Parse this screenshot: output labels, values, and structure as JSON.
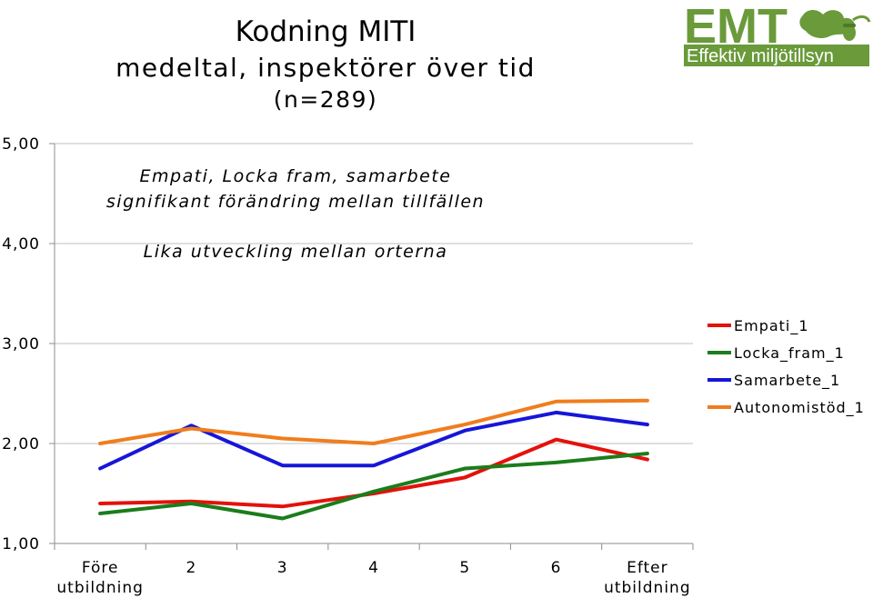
{
  "logo": {
    "name": "EMT",
    "tagline": "Effektiv miljötillsyn",
    "color": "#6a9a3a"
  },
  "chart_data": {
    "type": "line",
    "title": [
      "Kodning MITI",
      "medeltal, inspektörer över tid",
      "(n=289)"
    ],
    "annotations": [
      "Empati, Locka fram, samarbete",
      "signifikant förändring mellan tillfällen",
      "Lika utveckling mellan orterna"
    ],
    "categories": [
      [
        "Före",
        "utbildning"
      ],
      [
        "2"
      ],
      [
        "3"
      ],
      [
        "4"
      ],
      [
        "5"
      ],
      [
        "6"
      ],
      [
        "Efter",
        "utbildning"
      ]
    ],
    "yticks": [
      "1,00",
      "2,00",
      "3,00",
      "4,00",
      "5,00"
    ],
    "ylim": [
      1,
      5
    ],
    "grid": true,
    "legend_position": "right",
    "series": [
      {
        "name": "Empati_1",
        "color": "#e3120b",
        "values": [
          1.4,
          1.42,
          1.37,
          1.5,
          1.66,
          2.04,
          1.84
        ]
      },
      {
        "name": "Locka_fram_1",
        "color": "#1b7d1b",
        "values": [
          1.3,
          1.4,
          1.25,
          1.52,
          1.75,
          1.81,
          1.9
        ]
      },
      {
        "name": "Samarbete_1",
        "color": "#1616d8",
        "values": [
          1.75,
          2.18,
          1.78,
          1.78,
          2.13,
          2.31,
          2.19
        ]
      },
      {
        "name": "Autonomistöd_1",
        "color": "#f07d1e",
        "values": [
          2.0,
          2.15,
          2.05,
          2.0,
          2.19,
          2.42,
          2.43
        ]
      }
    ]
  }
}
